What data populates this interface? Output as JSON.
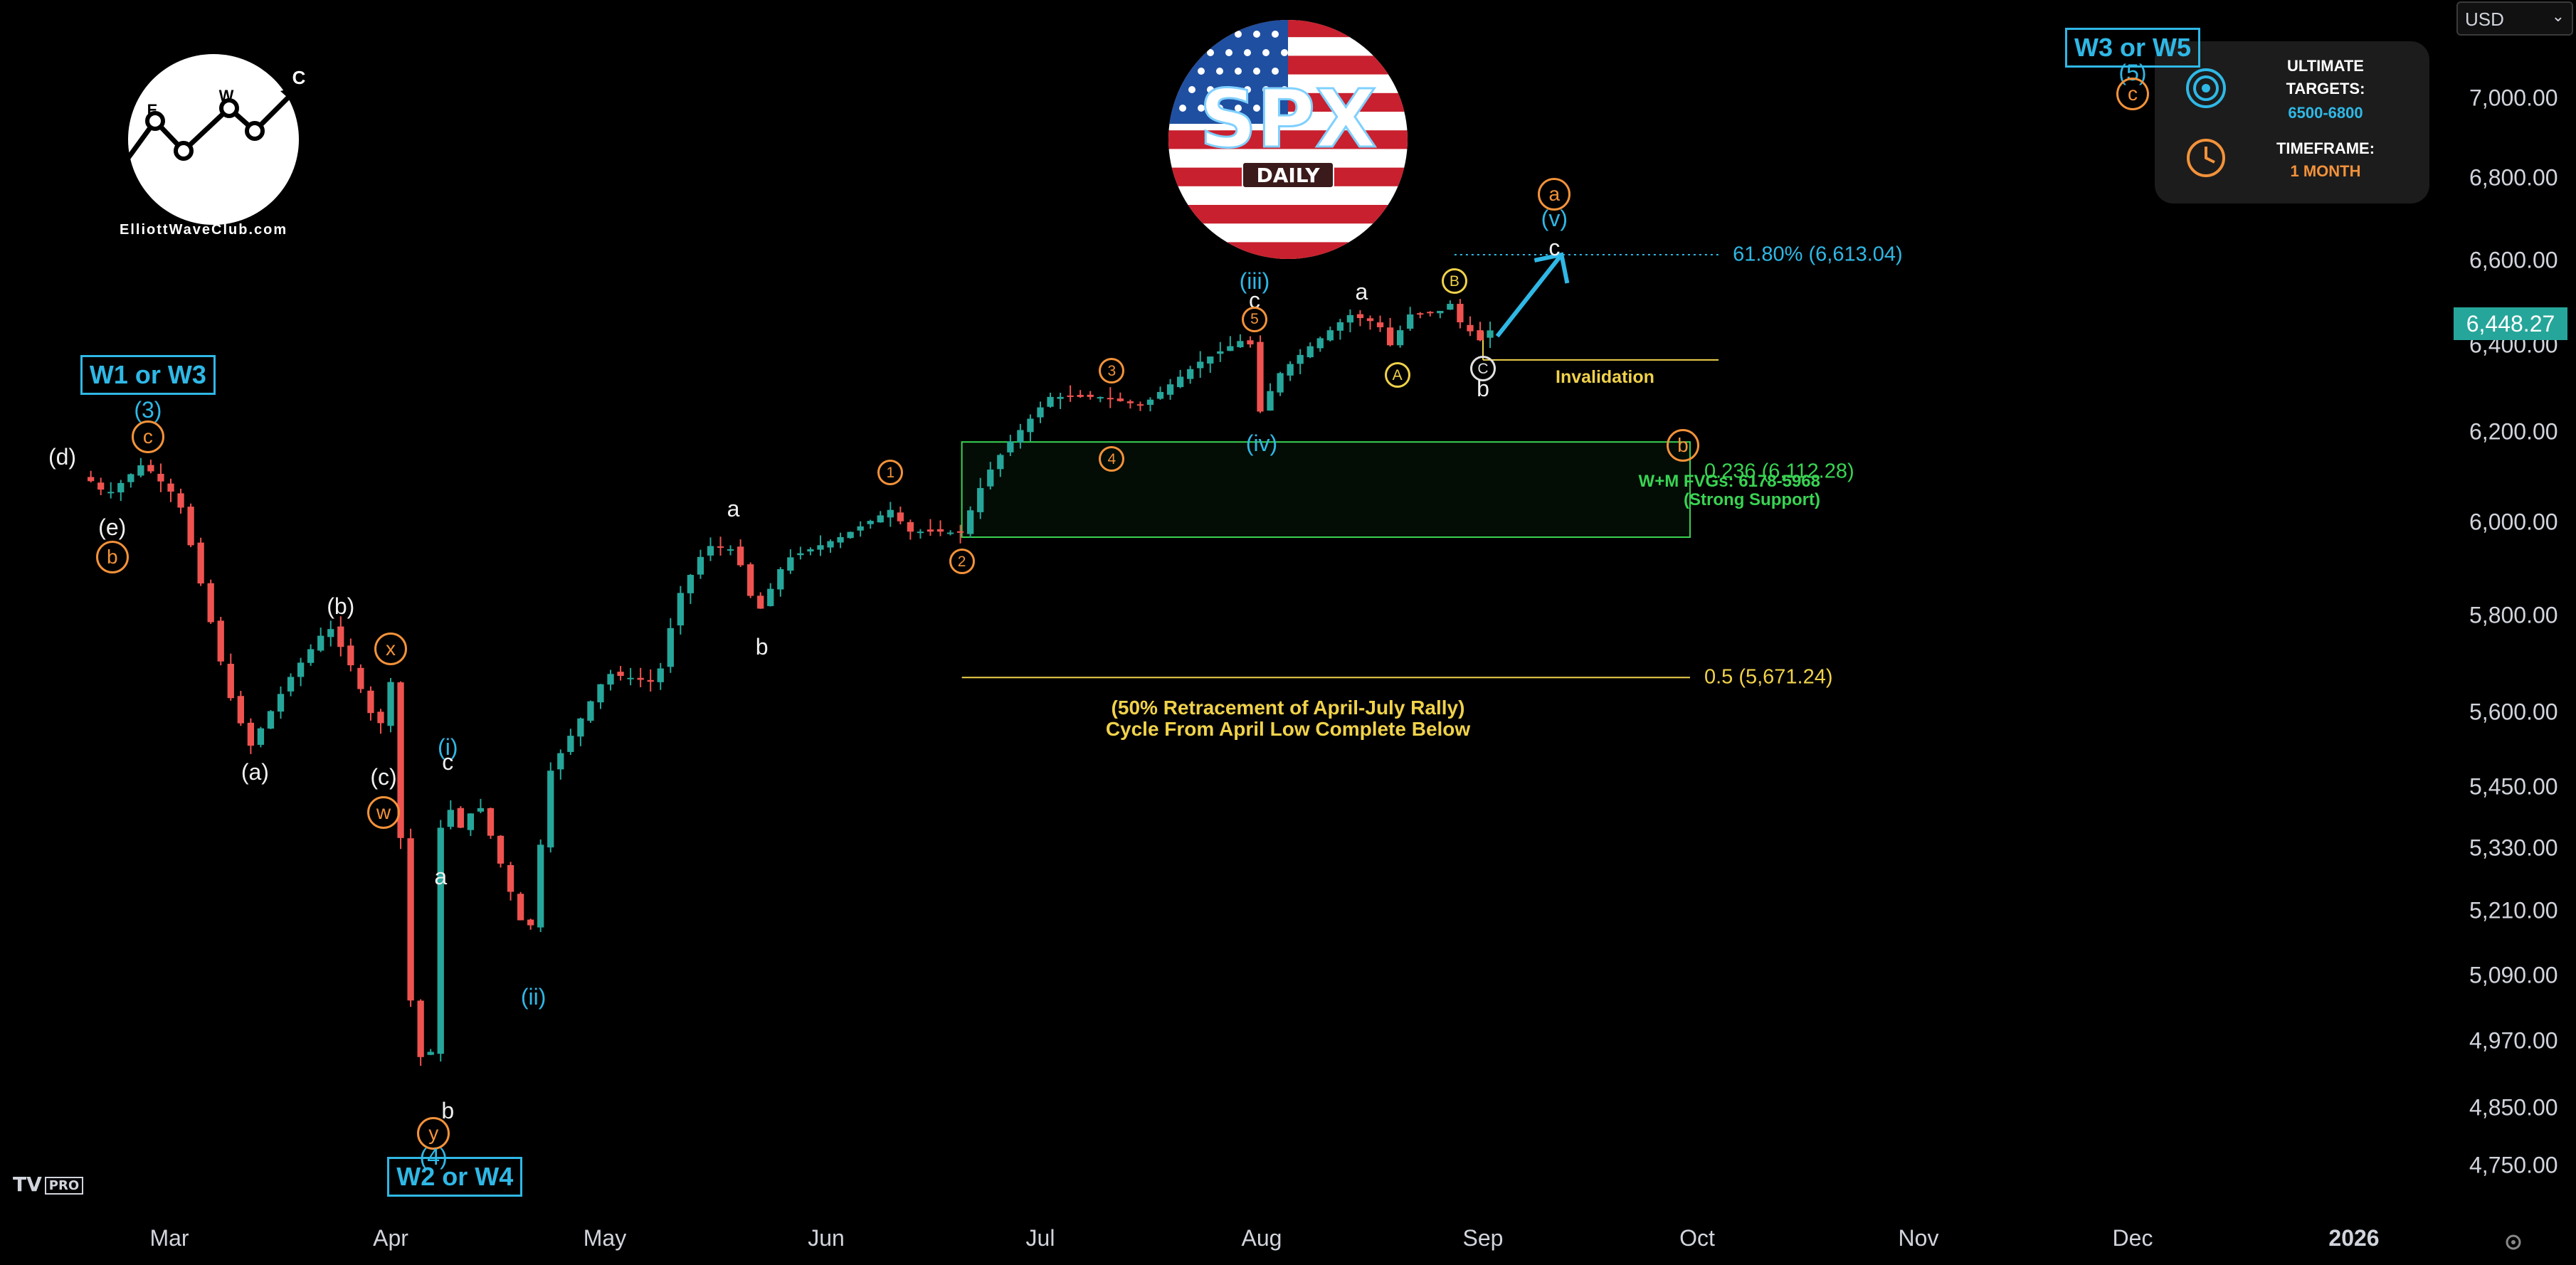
{
  "chart_data": {
    "type": "candlestick",
    "instrument": "SPX",
    "timeframe_badge": "DAILY",
    "currency_selector": "USD",
    "last_price": "6,448.27",
    "y_axis": {
      "ticks": [
        "7,000.00",
        "6,800.00",
        "6,600.00",
        "6,400.00",
        "6,200.00",
        "6,000.00",
        "5,800.00",
        "5,600.00",
        "5,450.00",
        "5,330.00",
        "5,210.00",
        "5,090.00",
        "4,970.00",
        "4,850.00",
        "4,750.00"
      ],
      "tick_values": [
        7000,
        6800,
        6600,
        6400,
        6200,
        6000,
        5800,
        5600,
        5450,
        5330,
        5210,
        5090,
        4970,
        4850,
        4750
      ],
      "scale": "log"
    },
    "x_axis": {
      "ticks": [
        "Mar",
        "Apr",
        "May",
        "Jun",
        "Jul",
        "Aug",
        "Sep",
        "Oct",
        "Nov",
        "Dec",
        "2026"
      ],
      "tick_dates": [
        "2025-03-01",
        "2025-04-01",
        "2025-05-01",
        "2025-06-01",
        "2025-07-01",
        "2025-08-01",
        "2025-09-01",
        "2025-10-01",
        "2025-11-01",
        "2025-12-01",
        "2026-01-01"
      ]
    },
    "series_path": [
      [
        "2025-02-18",
        6100
      ],
      [
        "2025-02-21",
        6060
      ],
      [
        "2025-02-26",
        6130
      ],
      [
        "2025-03-03",
        6050
      ],
      [
        "2025-03-10",
        5640
      ],
      [
        "2025-03-13",
        5530
      ],
      [
        "2025-03-19",
        5680
      ],
      [
        "2025-03-24",
        5780
      ],
      [
        "2025-03-27",
        5700
      ],
      [
        "2025-03-31",
        5560
      ],
      [
        "2025-04-02",
        5680
      ],
      [
        "2025-04-04",
        5080
      ],
      [
        "2025-04-07",
        4860
      ],
      [
        "2025-04-09",
        5460
      ],
      [
        "2025-04-11",
        5360
      ],
      [
        "2025-04-14",
        5420
      ],
      [
        "2025-04-21",
        5150
      ],
      [
        "2025-04-24",
        5480
      ],
      [
        "2025-05-02",
        5680
      ],
      [
        "2025-05-09",
        5660
      ],
      [
        "2025-05-12",
        5840
      ],
      [
        "2025-05-16",
        5950
      ],
      [
        "2025-05-20",
        5940
      ],
      [
        "2025-05-23",
        5800
      ],
      [
        "2025-05-27",
        5920
      ],
      [
        "2025-06-04",
        5970
      ],
      [
        "2025-06-11",
        6030
      ],
      [
        "2025-06-13",
        5980
      ],
      [
        "2025-06-19",
        5980
      ],
      [
        "2025-06-20",
        5960
      ],
      [
        "2025-06-24",
        6100
      ],
      [
        "2025-06-27",
        6170
      ],
      [
        "2025-07-03",
        6280
      ],
      [
        "2025-07-10",
        6280
      ],
      [
        "2025-07-16",
        6260
      ],
      [
        "2025-07-24",
        6360
      ],
      [
        "2025-07-31",
        6420
      ],
      [
        "2025-08-01",
        6230
      ],
      [
        "2025-08-04",
        6330
      ],
      [
        "2025-08-08",
        6390
      ],
      [
        "2025-08-14",
        6470
      ],
      [
        "2025-08-18",
        6450
      ],
      [
        "2025-08-20",
        6390
      ],
      [
        "2025-08-22",
        6470
      ],
      [
        "2025-08-27",
        6480
      ],
      [
        "2025-08-28",
        6500
      ],
      [
        "2025-08-29",
        6460
      ],
      [
        "2025-09-02",
        6400
      ],
      [
        "2025-09-03",
        6448
      ]
    ],
    "projection": {
      "from": [
        "2025-09-03",
        6420
      ],
      "to": [
        "2025-09-12",
        6613
      ]
    },
    "zones": [
      {
        "name": "W+M FVGs: 6178-5968",
        "note": "(Strong Support)",
        "from": 5968,
        "to": 6178,
        "start": "2025-06-20",
        "end": "2025-09-30",
        "label_fib": "0.236 (6,112.28)"
      }
    ],
    "levels": [
      {
        "label": "61.80% (6,613.04)",
        "value": 6613.04,
        "start": "2025-08-28",
        "end": "2025-10-04",
        "style": "dotted"
      },
      {
        "label": "0.5 (5,671.24)",
        "value": 5671.24,
        "start": "2025-06-20",
        "end": "2025-09-30",
        "style": "solid"
      },
      {
        "label": "Invalidation",
        "value": 6365,
        "start": "2025-09-01",
        "end": "2025-10-04",
        "style": "solid"
      }
    ],
    "retracement_note": [
      "(50% Retracement of April-July Rally)",
      "Cycle From April Low Complete Below"
    ],
    "annotations": [
      {
        "text": "(d)",
        "date": "2025-02-14",
        "price": 6145,
        "style": "white"
      },
      {
        "text": "(e)",
        "date": "2025-02-21",
        "price": 5990,
        "style": "white"
      },
      {
        "text": "b",
        "date": "2025-02-21",
        "price": 5925,
        "style": "circle-orange"
      },
      {
        "text": "W1 or W3",
        "date": "2025-02-26",
        "price": 6330,
        "style": "box"
      },
      {
        "text": "(3)",
        "date": "2025-02-26",
        "price": 6250,
        "style": "blue"
      },
      {
        "text": "c",
        "date": "2025-02-26",
        "price": 6190,
        "style": "circle-orange"
      },
      {
        "text": "(a)",
        "date": "2025-03-13",
        "price": 5480,
        "style": "white"
      },
      {
        "text": "(b)",
        "date": "2025-03-25",
        "price": 5820,
        "style": "white"
      },
      {
        "text": "x",
        "date": "2025-04-01",
        "price": 5730,
        "style": "circle-orange"
      },
      {
        "text": "(c)",
        "date": "2025-03-31",
        "price": 5470,
        "style": "white"
      },
      {
        "text": "w",
        "date": "2025-03-31",
        "price": 5400,
        "style": "circle-orange"
      },
      {
        "text": "(i)",
        "date": "2025-04-09",
        "price": 5530,
        "style": "blue"
      },
      {
        "text": "c",
        "date": "2025-04-09",
        "price": 5500,
        "style": "white"
      },
      {
        "text": "a",
        "date": "2025-04-08",
        "price": 5275,
        "style": "white"
      },
      {
        "text": "(ii)",
        "date": "2025-04-21",
        "price": 5050,
        "style": "blue"
      },
      {
        "text": "b",
        "date": "2025-04-09",
        "price": 4845,
        "style": "white"
      },
      {
        "text": "y",
        "date": "2025-04-07",
        "price": 4805,
        "style": "circle-orange"
      },
      {
        "text": "(4)",
        "date": "2025-04-07",
        "price": 4765,
        "style": "blue"
      },
      {
        "text": "W2 or W4",
        "date": "2025-04-10",
        "price": 4730,
        "style": "box"
      },
      {
        "text": "a",
        "date": "2025-05-19",
        "price": 6030,
        "style": "white"
      },
      {
        "text": "b",
        "date": "2025-05-23",
        "price": 5735,
        "style": "white"
      },
      {
        "text": "1",
        "date": "2025-06-10",
        "price": 6110,
        "style": "circle-orange"
      },
      {
        "text": "2",
        "date": "2025-06-20",
        "price": 5915,
        "style": "circle-orange"
      },
      {
        "text": "3",
        "date": "2025-07-11",
        "price": 6340,
        "style": "circle-orange"
      },
      {
        "text": "4",
        "date": "2025-07-11",
        "price": 6140,
        "style": "circle-orange"
      },
      {
        "text": "(iii)",
        "date": "2025-07-31",
        "price": 6550,
        "style": "blue"
      },
      {
        "text": "c",
        "date": "2025-07-31",
        "price": 6505,
        "style": "white"
      },
      {
        "text": "5",
        "date": "2025-07-31",
        "price": 6460,
        "style": "circle-orange"
      },
      {
        "text": "(iv)",
        "date": "2025-08-01",
        "price": 6175,
        "style": "blue"
      },
      {
        "text": "a",
        "date": "2025-08-15",
        "price": 6525,
        "style": "white"
      },
      {
        "text": "A",
        "date": "2025-08-20",
        "price": 6330,
        "style": "circle-yellow"
      },
      {
        "text": "B",
        "date": "2025-08-28",
        "price": 6550,
        "style": "circle-yellow"
      },
      {
        "text": "C",
        "date": "2025-09-01",
        "price": 6345,
        "style": "circle-white"
      },
      {
        "text": "b",
        "date": "2025-09-01",
        "price": 6300,
        "style": "white"
      },
      {
        "text": "a",
        "date": "2025-09-11",
        "price": 6760,
        "style": "circle-orange"
      },
      {
        "text": "(v)",
        "date": "2025-09-11",
        "price": 6700,
        "style": "blue"
      },
      {
        "text": "c",
        "date": "2025-09-11",
        "price": 6630,
        "style": "white"
      },
      {
        "text": "b",
        "date": "2025-09-29",
        "price": 6170,
        "style": "circle-orange"
      },
      {
        "text": "W3 or W5",
        "date": "2025-12-01",
        "price": 7130,
        "style": "box"
      },
      {
        "text": "(5)",
        "date": "2025-12-01",
        "price": 7065,
        "style": "blue"
      },
      {
        "text": "c",
        "date": "2025-12-01",
        "price": 7010,
        "style": "circle-orange"
      }
    ]
  },
  "info_panel": {
    "targets_title_1": "ULTIMATE",
    "targets_title_2": "TARGETS:",
    "targets_value": "6500-6800",
    "timeframe_title": "TIMEFRAME:",
    "timeframe_value": "1 MONTH"
  },
  "branding": {
    "logo_text": "ElliottWaveClub.com",
    "logo_letters": [
      "E",
      "W",
      "C"
    ],
    "tv_logo": "TV",
    "tv_badge": "PRO"
  },
  "colors": {
    "up": "#26a69a",
    "down": "#ef5350",
    "wave_blue": "#2fb8e6",
    "wave_orange": "#f3923a",
    "fib_yellow": "#f0d24a",
    "zone_green": "#39d353"
  }
}
